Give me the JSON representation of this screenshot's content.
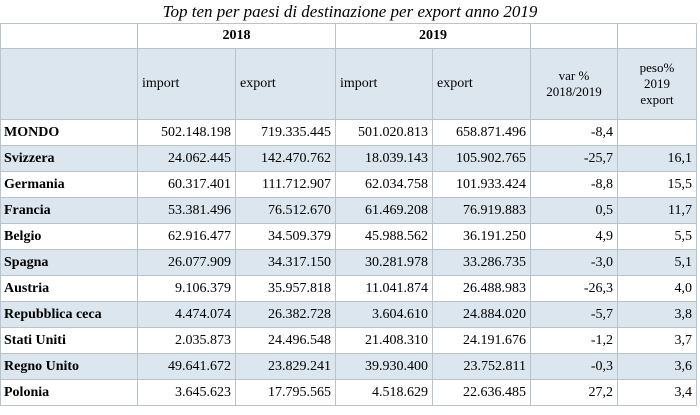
{
  "header": {
    "title": "Top ten per paesi di destinazione per export anno 2019"
  },
  "table": {
    "years": [
      "2018",
      "2019"
    ],
    "columns": [
      "import",
      "export",
      "import",
      "export"
    ],
    "var_header": [
      "var %",
      "2018/2019"
    ],
    "peso_header": [
      "peso%",
      "2019",
      "export"
    ],
    "rows": [
      [
        "MONDO",
        "502.148.198",
        "719.335.445",
        "501.020.813",
        "658.871.496",
        "-8,4"
      ],
      [
        "Svizzera",
        "24.062.445",
        "142.470.762",
        "18.039.143",
        "105.902.765",
        "-25,7",
        "16,1"
      ],
      [
        "Germania",
        "60.317.401",
        "111.712.907",
        "62.034.758",
        "101.933.424",
        "-8,8",
        "15,5"
      ],
      [
        "Francia",
        "53.381.496",
        "76.512.670",
        "61.469.208",
        "76.919.883",
        "0,5",
        "11,7"
      ],
      [
        "Belgio",
        "62.916.477",
        "34.509.379",
        "45.988.562",
        "36.191.250",
        "4,9",
        "5,5"
      ],
      [
        "Spagna",
        "26.077.909",
        "34.317.150",
        "30.281.978",
        "33.286.735",
        "-3,0",
        "5,1"
      ],
      [
        "Austria",
        "9.106.379",
        "35.957.818",
        "11.041.874",
        "26.488.983",
        "-26,3",
        "4,0"
      ],
      [
        "Repubblica ceca",
        "4.474.074",
        "26.382.728",
        "3.604.610",
        "24.884.020",
        "-5,7",
        "3,8"
      ],
      [
        "Stati Uniti",
        "2.035.873",
        "24.496.548",
        "21.408.310",
        "24.191.676",
        "-1,2",
        "3,7"
      ],
      [
        "Regno Unito",
        "49.641.672",
        "23.829.241",
        "39.930.400",
        "23.752.811",
        "-0,3",
        "3,6"
      ],
      [
        "Polonia",
        "3.645.623",
        "17.795.565",
        "4.518.629",
        "22.636.485",
        "27,2",
        "3,4"
      ]
    ]
  }
}
